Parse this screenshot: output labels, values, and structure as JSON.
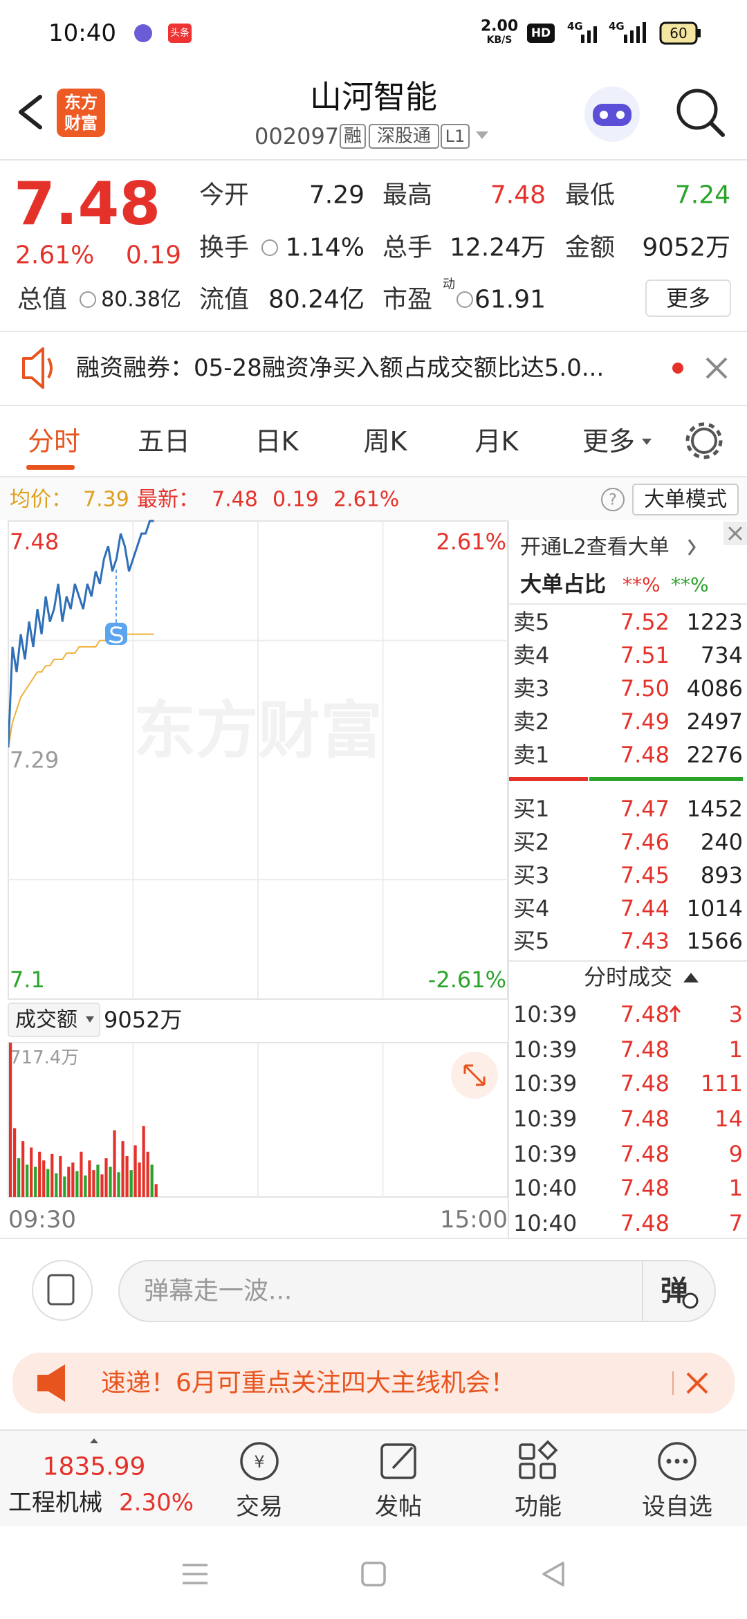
{
  "status_bar": {
    "time": "10:40",
    "app_icon": "头条",
    "speed": "2.00",
    "speed_unit": "KB/S",
    "hd": "HD",
    "net1": "4G",
    "net2": "4G",
    "battery": "60"
  },
  "header": {
    "logo": [
      "东方",
      "财富"
    ],
    "title": "山河智能",
    "code": "002097",
    "tags": [
      "融",
      "深股通",
      "L1"
    ]
  },
  "quote": {
    "price": "7.48",
    "change_pct": "2.61%",
    "change": "0.19",
    "fields": [
      {
        "label": "今开",
        "value": "7.29"
      },
      {
        "label": "最高",
        "value": "7.48"
      },
      {
        "label": "最低",
        "value": "7.24"
      },
      {
        "label": "换手",
        "value": "1.14%"
      },
      {
        "label": "总手",
        "value": "12.24万"
      },
      {
        "label": "金额",
        "value": "9052万"
      },
      {
        "label": "总值",
        "value": "80.38亿"
      },
      {
        "label": "流值",
        "value": "80.24亿"
      },
      {
        "label": "市盈",
        "sup": "动",
        "value": "61.91"
      }
    ],
    "more": "更多"
  },
  "notice": {
    "text": "融资融券：05-28融资净买入额占成交额比达5.0..."
  },
  "tabs": [
    "分时",
    "五日",
    "日K",
    "周K",
    "月K",
    "更多"
  ],
  "info_bar": {
    "avg_label": "均价：",
    "avg": "7.39",
    "latest_label": "最新：",
    "latest": "7.48",
    "change": "0.19",
    "change_pct": "2.61%",
    "help": "?",
    "mode": "大单模式"
  },
  "watermark": "东方财富",
  "l2_panel": {
    "promo": "开通L2查看大单",
    "ratio_label": "大单占比",
    "ratio_up": "**%",
    "ratio_down": "**%"
  },
  "order_book": {
    "asks": [
      [
        "卖5",
        "7.52",
        "1223"
      ],
      [
        "卖4",
        "7.51",
        "734"
      ],
      [
        "卖3",
        "7.50",
        "4086"
      ],
      [
        "卖2",
        "7.49",
        "2497"
      ],
      [
        "卖1",
        "7.48",
        "2276"
      ]
    ],
    "bids": [
      [
        "买1",
        "7.47",
        "1452"
      ],
      [
        "买2",
        "7.46",
        "240"
      ],
      [
        "买3",
        "7.45",
        "893"
      ],
      [
        "买4",
        "7.44",
        "1014"
      ],
      [
        "买5",
        "7.43",
        "1566"
      ]
    ]
  },
  "trades": {
    "title": "分时成交",
    "rows": [
      [
        "10:39",
        "7.48",
        "3"
      ],
      [
        "10:39",
        "7.48",
        "1"
      ],
      [
        "10:39",
        "7.48",
        "111"
      ],
      [
        "10:39",
        "7.48",
        "14"
      ],
      [
        "10:39",
        "7.48",
        "9"
      ],
      [
        "10:40",
        "7.48",
        "1"
      ],
      [
        "10:40",
        "7.48",
        "7"
      ]
    ]
  },
  "volume_header": {
    "label": "成交额",
    "value": "9052万"
  },
  "comment": {
    "placeholder": "弹幕走一波...",
    "button": "弹"
  },
  "promo": {
    "text": "速递！6月可重点关注四大主线机会！"
  },
  "bottom_nav": {
    "index_value": "1835.99",
    "index_name": "工程机械",
    "index_change": "2.30%",
    "items": [
      "交易",
      "发帖",
      "功能",
      "设自选"
    ]
  },
  "chart_data": [
    {
      "type": "line",
      "x": [
        0,
        2,
        4,
        6,
        8,
        10,
        12,
        14,
        16,
        18,
        20,
        22,
        24,
        26,
        28,
        30,
        32,
        34,
        36,
        38,
        40,
        42,
        44,
        46,
        48,
        50,
        52,
        54,
        56,
        58,
        60,
        62,
        64,
        66,
        68,
        70
      ],
      "xlim": [
        0,
        240
      ],
      "xticks": [
        {
          "value": 0,
          "label": "09:30"
        },
        {
          "value": 240,
          "label": "15:00"
        }
      ],
      "ylim": [
        7.1,
        7.48
      ],
      "yticks": [
        7.48,
        7.29,
        7.1
      ],
      "y2lim": [
        -2.61,
        2.61
      ],
      "y2ticks": [
        {
          "value": 2.61,
          "label": "2.61%"
        },
        {
          "value": -2.61,
          "label": "-2.61%"
        }
      ],
      "series": [
        {
          "color": "#2f6fb7",
          "values": [
            7.3,
            7.38,
            7.36,
            7.39,
            7.37,
            7.4,
            7.38,
            7.41,
            7.39,
            7.42,
            7.4,
            7.41,
            7.43,
            7.4,
            7.42,
            7.41,
            7.43,
            7.42,
            7.41,
            7.43,
            7.42,
            7.44,
            7.43,
            7.45,
            7.46,
            7.44,
            7.45,
            7.47,
            7.46,
            7.44,
            7.45,
            7.46,
            7.47,
            7.47,
            7.48,
            7.48
          ]
        },
        {
          "color": "#f0b13c",
          "values": [
            7.3,
            7.32,
            7.33,
            7.34,
            7.345,
            7.35,
            7.355,
            7.36,
            7.36,
            7.365,
            7.365,
            7.37,
            7.37,
            7.37,
            7.375,
            7.375,
            7.375,
            7.38,
            7.38,
            7.38,
            7.38,
            7.38,
            7.385,
            7.385,
            7.385,
            7.385,
            7.385,
            7.39,
            7.39,
            7.39,
            7.39,
            7.39,
            7.39,
            7.39,
            7.39,
            7.39
          ]
        }
      ]
    },
    {
      "type": "bar",
      "x": [
        0,
        2,
        4,
        6,
        8,
        10,
        12,
        14,
        16,
        18,
        20,
        22,
        24,
        26,
        28,
        30,
        32,
        34,
        36,
        38,
        40,
        42,
        44,
        46,
        48,
        50,
        52,
        54,
        56,
        58,
        60,
        62,
        64,
        66,
        68,
        70
      ],
      "xlim": [
        0,
        240
      ],
      "ylim": [
        0,
        717.4
      ],
      "yticks": [
        {
          "value": 717.4,
          "label": "717.4万"
        }
      ],
      "values": [
        717.4,
        320,
        180,
        260,
        150,
        230,
        140,
        210,
        170,
        130,
        200,
        110,
        190,
        95,
        140,
        160,
        120,
        210,
        100,
        170,
        125,
        150,
        105,
        180,
        140,
        310,
        115,
        260,
        190,
        125,
        240,
        160,
        330,
        210,
        150,
        60
      ],
      "colors": [
        "#e4322b",
        "#e4322b",
        "#2aa32a",
        "#e4322b",
        "#2aa32a",
        "#e4322b",
        "#2aa32a",
        "#e4322b",
        "#e4322b",
        "#2aa32a",
        "#e4322b",
        "#2aa32a",
        "#e4322b",
        "#2aa32a",
        "#e4322b",
        "#e4322b",
        "#2aa32a",
        "#e4322b",
        "#2aa32a",
        "#e4322b",
        "#e4322b",
        "#2aa32a",
        "#e4322b",
        "#e4322b",
        "#2aa32a",
        "#e4322b",
        "#2aa32a",
        "#e4322b",
        "#e4322b",
        "#2aa32a",
        "#e4322b",
        "#e4322b",
        "#e4322b",
        "#e4322b",
        "#2aa32a",
        "#e4322b"
      ]
    }
  ]
}
